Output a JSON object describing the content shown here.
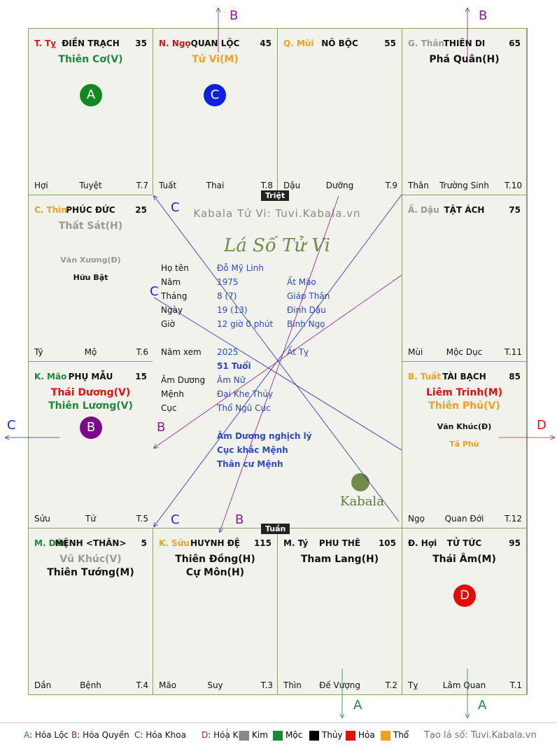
{
  "colors": {
    "Kim": "#888888",
    "Moc": "#1a8a3a",
    "Thuy": "#000000",
    "Hoa": "#e01010",
    "Tho": "#f0a020",
    "board": "#f1f2ec",
    "border": "#8aa16d"
  },
  "cells": [
    {
      "branch": "T. Tỵ",
      "branch_color": "#d01818",
      "name": "ĐIỀN TRẠCH",
      "age": "35",
      "main": [
        "Thiên Cơ(V)"
      ],
      "main_colors": [
        "#1a8a3a"
      ],
      "minor": [],
      "bl": "Hợi",
      "bc": "Tuyệt",
      "br": "T.7"
    },
    {
      "branch": "N. Ngọ",
      "branch_color": "#d01818",
      "name": "QUAN LỘC",
      "age": "45",
      "main": [
        "Tử Vi(M)"
      ],
      "main_colors": [
        "#f0a020"
      ],
      "minor": [],
      "bl": "Tuất",
      "bc": "Thai",
      "br": "T.8"
    },
    {
      "branch": "Q. Mùi",
      "branch_color": "#f0a020",
      "name": "NÔ BỘC",
      "age": "55",
      "main": [],
      "main_colors": [],
      "minor": [],
      "bl": "Dậu",
      "bc": "Dưỡng",
      "br": "T.9"
    },
    {
      "branch": "G. Thân",
      "branch_color": "#999999",
      "name": "THIÊN DI",
      "age": "65",
      "main": [
        "Phá Quân(H)"
      ],
      "main_colors": [
        "#111111"
      ],
      "minor": [],
      "bl": "Thân",
      "bc": "Trường Sinh",
      "br": "T.10"
    },
    {
      "branch": "C. Thìn",
      "branch_color": "#f0a020",
      "name": "PHÚC ĐỨC",
      "age": "25",
      "main": [
        "Thất Sát(H)"
      ],
      "main_colors": [
        "#999999"
      ],
      "minor": [
        "Văn Xương(Đ)",
        "Hữu Bật"
      ],
      "minor_colors": [
        "#999999",
        "#111111"
      ],
      "bl": "Tý",
      "bc": "Mộ",
      "br": "T.6"
    },
    {
      "branch": "Ấ. Dậu",
      "branch_color": "#999999",
      "name": "TẬT ÁCH",
      "age": "75",
      "main": [],
      "main_colors": [],
      "minor": [],
      "bl": "Mùi",
      "bc": "Mộc Dục",
      "br": "T.11"
    },
    {
      "branch": "K. Mão",
      "branch_color": "#1a8a3a",
      "name": "PHỤ MẪU",
      "age": "15",
      "main": [
        "Thái Dương(V)",
        "Thiên Lương(V)"
      ],
      "main_colors": [
        "#e01010",
        "#1a8a3a"
      ],
      "minor": [],
      "bl": "Sửu",
      "bc": "Tử",
      "br": "T.5"
    },
    {
      "branch": "B. Tuất",
      "branch_color": "#f0a020",
      "name": "TÀI BẠCH",
      "age": "85",
      "main": [
        "Liêm Trinh(M)",
        "Thiên Phủ(V)"
      ],
      "main_colors": [
        "#e01010",
        "#f0a020"
      ],
      "minor": [
        "Văn Khúc(Đ)",
        "Tả Phù"
      ],
      "minor_colors": [
        "#111111",
        "#f0a020"
      ],
      "bl": "Ngọ",
      "bc": "Quan Đới",
      "br": "T.12"
    },
    {
      "branch": "M. Dần",
      "branch_color": "#1a8a3a",
      "name": "MỆNH <THÂN>",
      "age": "5",
      "main": [
        "Vũ Khúc(V)",
        "Thiên Tướng(M)"
      ],
      "main_colors": [
        "#999999",
        "#111111"
      ],
      "minor": [],
      "bl": "Dần",
      "bc": "Bệnh",
      "br": "T.4"
    },
    {
      "branch": "K. Sửu",
      "branch_color": "#f0a020",
      "name": "HUYNH ĐỆ",
      "age": "115",
      "main": [
        "Thiên Đồng(H)",
        "Cự Môn(H)"
      ],
      "main_colors": [
        "#111111",
        "#111111"
      ],
      "minor": [],
      "bl": "Mão",
      "bc": "Suy",
      "br": "T.3"
    },
    {
      "branch": "M. Tý",
      "branch_color": "#111111",
      "name": "PHU THÊ",
      "age": "105",
      "main": [
        "Tham Lang(H)"
      ],
      "main_colors": [
        "#111111"
      ],
      "minor": [],
      "bl": "Thìn",
      "bc": "Đế Vượng",
      "br": "T.2"
    },
    {
      "branch": "Đ. Hợi",
      "branch_color": "#111111",
      "name": "TỬ TỨC",
      "age": "95",
      "main": [
        "Thái Âm(M)"
      ],
      "main_colors": [
        "#111111"
      ],
      "minor": [],
      "bl": "Tỵ",
      "bc": "Lâm Quan",
      "br": "T.1"
    }
  ],
  "badges": {
    "A": "A",
    "B": "B",
    "C": "C",
    "D": "D"
  },
  "center": {
    "triet": "Triệt",
    "tuan": "Tuần",
    "watermark": "Kabala Tử Vi: Tuvi.Kabala.vn",
    "title": "Lá Số Tử Vi",
    "logo": "Kabala",
    "rows": [
      {
        "label": "Họ tên",
        "v1": "Đỗ Mỹ Linh",
        "v2": ""
      },
      {
        "label": "Năm",
        "v1": "1975",
        "v2": "Ất Mão"
      },
      {
        "label": "Tháng",
        "v1": "8  (7)",
        "v2": "Giáp Thân"
      },
      {
        "label": "Ngày",
        "v1": "19  (13)",
        "v2": "Đinh Dậu"
      },
      {
        "label": "Giờ",
        "v1": "12 giờ 0 phút",
        "v2": "Bính Ngọ"
      }
    ],
    "namxem_label": "Năm xem",
    "namxem": "2025",
    "namxem_can": "Ất Tỵ",
    "tuoi": "51 Tuổi",
    "rows2": [
      {
        "label": "Âm Dương",
        "v1": "Âm Nữ"
      },
      {
        "label": "Mệnh",
        "v1": "Đại Khe Thủy"
      },
      {
        "label": "Cục",
        "v1": "Thổ Ngũ Cục"
      }
    ],
    "notes": [
      "Âm Dương nghịch lý",
      "Cục khắc Mệnh",
      "Thân cư Mệnh"
    ]
  },
  "arrow_labels": {
    "A": "A",
    "B": "B",
    "C": "C",
    "D": "D"
  },
  "legend": {
    "hoa": [
      {
        "k": "A",
        "t": ": Hóa Lộc",
        "c": "#1a8a3a"
      },
      {
        "k": "B",
        "t": ": Hóa Quyền",
        "c": "#8a1a9a"
      },
      {
        "k": "C",
        "t": ": Hóa Khoa",
        "c": "#1a2ad0"
      },
      {
        "k": "D",
        "t": ": Hóa Kị",
        "c": "#e01010"
      }
    ],
    "elements": [
      {
        "t": "Kim",
        "c": "#888888"
      },
      {
        "t": "Mộc",
        "c": "#1a8a3a"
      },
      {
        "t": "Thủy",
        "c": "#000000"
      },
      {
        "t": "Hỏa",
        "c": "#e01010"
      },
      {
        "t": "Thổ",
        "c": "#f0a020"
      }
    ],
    "credit": "Tạo lá số: Tuvi.Kabala.vn"
  }
}
